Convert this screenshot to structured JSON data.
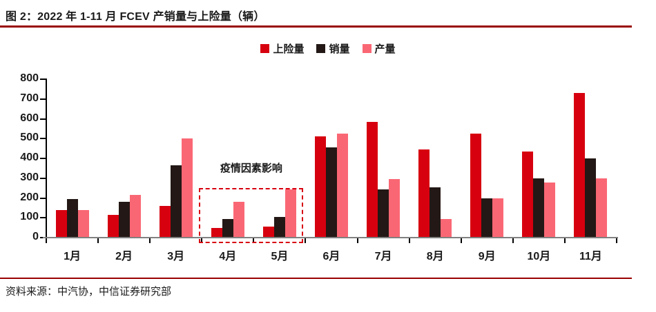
{
  "figure": {
    "title": "图 2：2022 年 1-11 月 FCEV 产销量与上险量（辆）",
    "source": "资料来源：中汽协，中信证券研究部"
  },
  "colors": {
    "rule": "#990000",
    "x_axis_line": "#808080",
    "y_axis_line": "#000000",
    "annotation_box": "#d7000f",
    "text": "#1a1a1a"
  },
  "chart_data": {
    "type": "bar",
    "title": "2022 年 1-11 月 FCEV 产销量与上险量（辆）",
    "categories": [
      "1月",
      "2月",
      "3月",
      "4月",
      "5月",
      "6月",
      "7月",
      "8月",
      "9月",
      "10月",
      "11月"
    ],
    "series": [
      {
        "name": "上险量",
        "key": "insured",
        "color": "#d7000f",
        "values": [
          140,
          115,
          160,
          50,
          55,
          510,
          585,
          445,
          525,
          435,
          730
        ]
      },
      {
        "name": "销量",
        "key": "sales",
        "color": "#231815",
        "values": [
          195,
          180,
          365,
          95,
          105,
          455,
          245,
          255,
          200,
          300,
          400
        ]
      },
      {
        "name": "产量",
        "key": "production",
        "color": "#fa6774",
        "values": [
          140,
          215,
          500,
          180,
          245,
          525,
          295,
          95,
          200,
          280,
          300
        ]
      }
    ],
    "xlabel": "",
    "ylabel": "",
    "ylim": [
      0,
      800
    ],
    "yticks": [
      0,
      100,
      200,
      300,
      400,
      500,
      600,
      700,
      800
    ],
    "grid": false,
    "legend_position": "top-center",
    "annotation": {
      "text": "疫情因素影响",
      "start_month": "4月",
      "end_month": "5月",
      "box_top_value": 250
    }
  }
}
